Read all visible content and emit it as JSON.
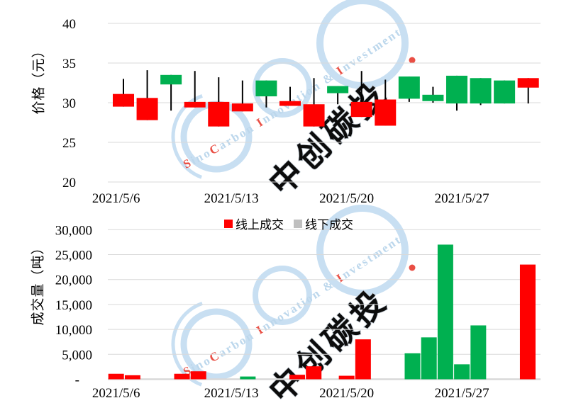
{
  "colors": {
    "up_red": "#ff0000",
    "down_green": "#00b050",
    "offline_legend_gray": "#bfbfbf",
    "grid": "#d9d9d9",
    "axis_line": "#d9d9d9",
    "wick_black": "#000000",
    "text": "#000000",
    "watermark_blue": "#c6def2",
    "watermark_text_blue": "#b9d5eb",
    "watermark_red": "#e8453a",
    "watermark_cn_outline": "#c4cdd6"
  },
  "price_chart": {
    "y_axis_title": "价格（元）",
    "y_ticks": [
      "40",
      "35",
      "30",
      "25",
      "20"
    ],
    "x_labels": [
      "2021/5/6",
      "2021/5/13",
      "2021/5/20",
      "2021/5/27"
    ]
  },
  "volume_chart": {
    "y_axis_title": "成交量（吨）",
    "y_ticks": [
      "30,000",
      "25,000",
      "20,000",
      "15,000",
      "10,000",
      "5,000",
      "-"
    ],
    "x_labels": [
      "2021/5/6",
      "2021/5/13",
      "2021/5/20",
      "2021/5/27"
    ],
    "legend": [
      {
        "label": "线上成交",
        "color": "#ff0000"
      },
      {
        "label": "线下成交",
        "color": "#bfbfbf"
      }
    ]
  },
  "watermark": {
    "brand_segments": [
      {
        "t": "S",
        "red": true
      },
      {
        "t": "ino"
      },
      {
        "t": "C",
        "red": true
      },
      {
        "t": "arbon "
      },
      {
        "t": "I",
        "red": true
      },
      {
        "t": "nnovation "
      },
      {
        "t": "&"
      },
      {
        "t": " "
      },
      {
        "t": "I",
        "red": true
      },
      {
        "t": "nvestment"
      }
    ],
    "brand_cn_chars": [
      "中",
      "创",
      "碳",
      "投"
    ]
  },
  "chart_data": [
    {
      "type": "candlestick",
      "title": "",
      "ylabel": "价格（元）",
      "ylim": [
        20,
        40
      ],
      "grid": true,
      "base_date": "2021/5/6",
      "candles": [
        {
          "date": "2021/5/6",
          "open": 29.5,
          "high": 33.0,
          "low": 29.5,
          "close": 31.1,
          "dir": "up"
        },
        {
          "date": "2021/5/7",
          "open": 27.8,
          "high": 34.1,
          "low": 27.8,
          "close": 30.6,
          "dir": "up"
        },
        {
          "date": "2021/5/10",
          "open": 33.5,
          "high": 33.5,
          "low": 29.0,
          "close": 32.3,
          "dir": "down"
        },
        {
          "date": "2021/5/11",
          "open": 29.4,
          "high": 34.0,
          "low": 29.4,
          "close": 30.1,
          "dir": "up"
        },
        {
          "date": "2021/5/12",
          "open": 27.0,
          "high": 33.2,
          "low": 27.0,
          "close": 30.1,
          "dir": "up"
        },
        {
          "date": "2021/5/13",
          "open": 28.9,
          "high": 32.8,
          "low": 28.9,
          "close": 29.9,
          "dir": "up"
        },
        {
          "date": "2021/5/14",
          "open": 32.8,
          "high": 32.8,
          "low": 29.4,
          "close": 30.8,
          "dir": "down"
        },
        {
          "date": "2021/5/17",
          "open": 29.6,
          "high": 32.0,
          "low": 29.6,
          "close": 30.2,
          "dir": "up"
        },
        {
          "date": "2021/5/18",
          "open": 27.0,
          "high": 33.1,
          "low": 27.0,
          "close": 29.8,
          "dir": "up"
        },
        {
          "date": "2021/5/19",
          "open": 32.1,
          "high": 32.1,
          "low": 29.8,
          "close": 31.2,
          "dir": "down"
        },
        {
          "date": "2021/5/20",
          "open": 28.2,
          "high": 34.0,
          "low": 28.2,
          "close": 30.1,
          "dir": "up"
        },
        {
          "date": "2021/5/21",
          "open": 27.1,
          "high": 32.9,
          "low": 27.1,
          "close": 30.4,
          "dir": "up"
        },
        {
          "date": "2021/5/24",
          "open": 33.3,
          "high": 33.3,
          "low": 30.1,
          "close": 30.5,
          "dir": "down"
        },
        {
          "date": "2021/5/25",
          "open": 31.0,
          "high": 32.0,
          "low": 30.0,
          "close": 30.2,
          "dir": "down"
        },
        {
          "date": "2021/5/26",
          "open": 33.4,
          "high": 33.4,
          "low": 29.0,
          "close": 29.9,
          "dir": "down"
        },
        {
          "date": "2021/5/27",
          "open": 33.1,
          "high": 33.1,
          "low": 29.7,
          "close": 29.9,
          "dir": "down"
        },
        {
          "date": "2021/5/28",
          "open": 32.8,
          "high": 32.8,
          "low": 29.9,
          "close": 29.9,
          "dir": "down"
        },
        {
          "date": "2021/5/31",
          "open": 31.9,
          "high": 33.1,
          "low": 29.9,
          "close": 33.1,
          "dir": "up"
        }
      ]
    },
    {
      "type": "bar",
      "title": "",
      "ylabel": "成交量（吨）",
      "ylim": [
        0,
        30000
      ],
      "grid": true,
      "base_date": "2021/5/6",
      "x_axis_kind": "calendar-date",
      "bars": [
        {
          "date": "2021/5/6",
          "value": 1100,
          "series": "线上成交",
          "color": "red"
        },
        {
          "date": "2021/5/7",
          "value": 800,
          "series": "线上成交",
          "color": "red"
        },
        {
          "date": "2021/5/10",
          "value": 1100,
          "series": "线上成交",
          "color": "red"
        },
        {
          "date": "2021/5/11",
          "value": 1600,
          "series": "线上成交",
          "color": "red"
        },
        {
          "date": "2021/5/12",
          "value": 0,
          "series": "",
          "color": "none"
        },
        {
          "date": "2021/5/13",
          "value": 0,
          "series": "",
          "color": "none"
        },
        {
          "date": "2021/5/14",
          "value": 550,
          "series": "线下成交",
          "color": "green"
        },
        {
          "date": "2021/5/17",
          "value": 900,
          "series": "线上成交",
          "color": "red"
        },
        {
          "date": "2021/5/18",
          "value": 2600,
          "series": "线上成交",
          "color": "red"
        },
        {
          "date": "2021/5/19",
          "value": 0,
          "series": "",
          "color": "none"
        },
        {
          "date": "2021/5/20",
          "value": 700,
          "series": "线上成交",
          "color": "red"
        },
        {
          "date": "2021/5/21",
          "value": 8000,
          "series": "线上成交",
          "color": "red"
        },
        {
          "date": "2021/5/24",
          "value": 5200,
          "series": "线下成交",
          "color": "green"
        },
        {
          "date": "2021/5/25",
          "value": 8400,
          "series": "线下成交",
          "color": "green"
        },
        {
          "date": "2021/5/26",
          "value": 27000,
          "series": "线下成交",
          "color": "green"
        },
        {
          "date": "2021/5/27",
          "value": 3000,
          "series": "线下成交",
          "color": "green"
        },
        {
          "date": "2021/5/28",
          "value": 10800,
          "series": "线下成交",
          "color": "green"
        },
        {
          "date": "2021/5/31",
          "value": 23000,
          "series": "线上成交",
          "color": "red"
        }
      ]
    }
  ]
}
